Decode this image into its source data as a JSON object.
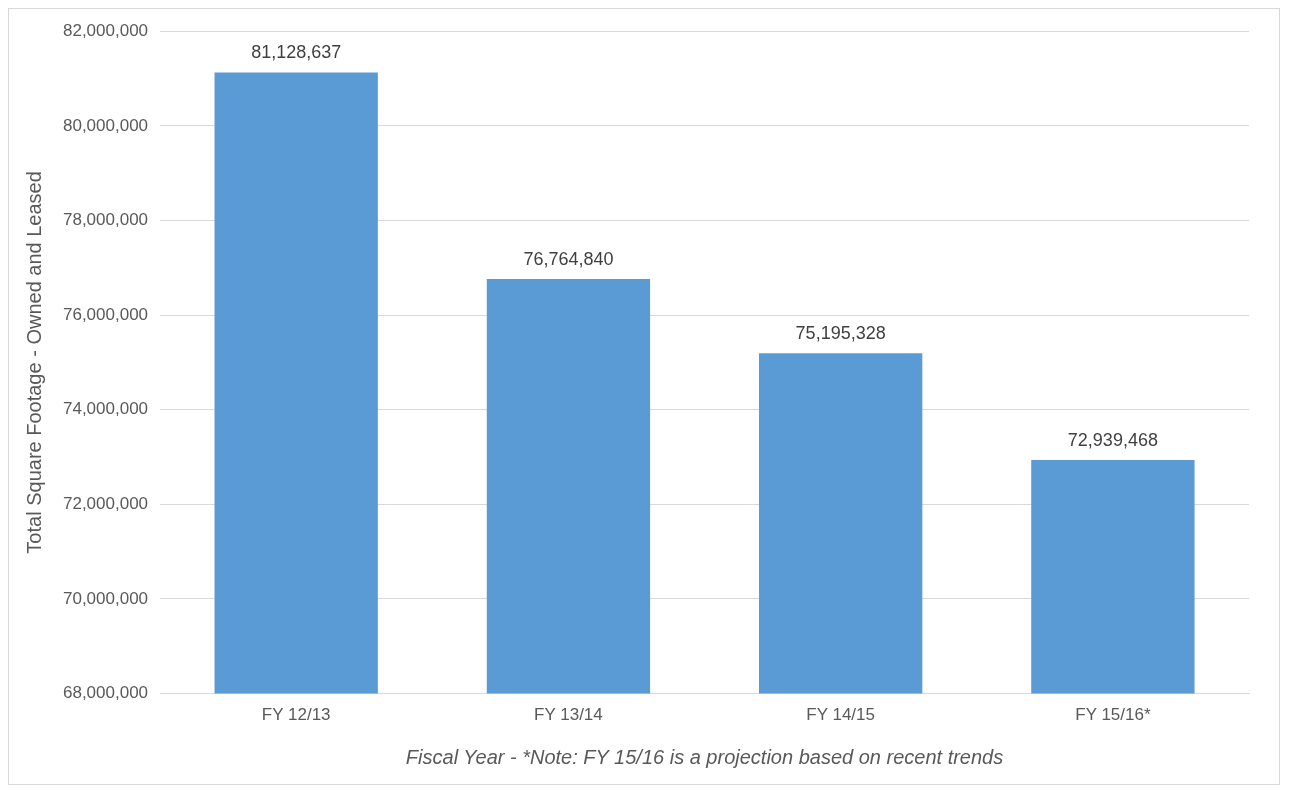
{
  "chart_data": {
    "type": "bar",
    "categories": [
      "FY 12/13",
      "FY 13/14",
      "FY 14/15",
      "FY 15/16*"
    ],
    "values": [
      81128637,
      76764840,
      75195328,
      72939468
    ],
    "value_labels": [
      "81,128,637",
      "76,764,840",
      "75,195,328",
      "72,939,468"
    ],
    "color": "#5b9bd5",
    "xlabel": "Fiscal Year - *Note: FY 15/16 is a projection based on recent trends",
    "ylabel": "Total Square Footage - Owned and Leased",
    "ylim": [
      68000000,
      82000000
    ],
    "yticks": [
      {
        "value": 68000000,
        "label": "68,000,000"
      },
      {
        "value": 70000000,
        "label": "70,000,000"
      },
      {
        "value": 72000000,
        "label": "72,000,000"
      },
      {
        "value": 74000000,
        "label": "74,000,000"
      },
      {
        "value": 76000000,
        "label": "76,000,000"
      },
      {
        "value": 78000000,
        "label": "78,000,000"
      },
      {
        "value": 80000000,
        "label": "80,000,000"
      },
      {
        "value": 82000000,
        "label": "82,000,000"
      }
    ],
    "grid": "y",
    "legend": false
  }
}
